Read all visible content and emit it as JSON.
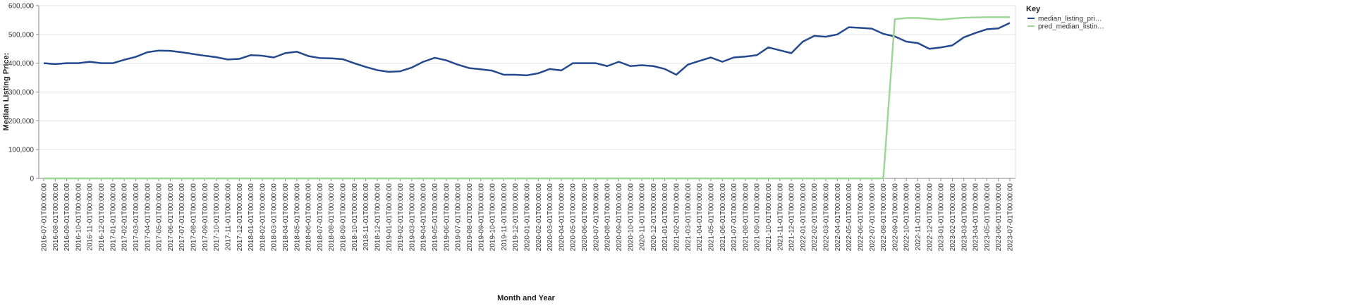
{
  "chart_data": {
    "type": "line",
    "x_label": "Month and Year",
    "y_label": "Median Listing Price:",
    "legend_title": "Key",
    "legend_position": "right",
    "grid": true,
    "categories": [
      "2016-07-01T00:00:00",
      "2016-08-01T00:00:00",
      "2016-09-01T00:00:00",
      "2016-10-01T00:00:00",
      "2016-11-01T00:00:00",
      "2016-12-01T00:00:00",
      "2017-01-01T00:00:00",
      "2017-02-01T00:00:00",
      "2017-03-01T00:00:00",
      "2017-04-01T00:00:00",
      "2017-05-01T00:00:00",
      "2017-06-01T00:00:00",
      "2017-07-01T00:00:00",
      "2017-08-01T00:00:00",
      "2017-09-01T00:00:00",
      "2017-10-01T00:00:00",
      "2017-11-01T00:00:00",
      "2017-12-01T00:00:00",
      "2018-01-01T00:00:00",
      "2018-02-01T00:00:00",
      "2018-03-01T00:00:00",
      "2018-04-01T00:00:00",
      "2018-05-01T00:00:00",
      "2018-06-01T00:00:00",
      "2018-07-01T00:00:00",
      "2018-08-01T00:00:00",
      "2018-09-01T00:00:00",
      "2018-10-01T00:00:00",
      "2018-11-01T00:00:00",
      "2018-12-01T00:00:00",
      "2019-01-01T00:00:00",
      "2019-02-01T00:00:00",
      "2019-03-01T00:00:00",
      "2019-04-01T00:00:00",
      "2019-05-01T00:00:00",
      "2019-06-01T00:00:00",
      "2019-07-01T00:00:00",
      "2019-08-01T00:00:00",
      "2019-09-01T00:00:00",
      "2019-10-01T00:00:00",
      "2019-11-01T00:00:00",
      "2019-12-01T00:00:00",
      "2020-01-01T00:00:00",
      "2020-02-01T00:00:00",
      "2020-03-01T00:00:00",
      "2020-04-01T00:00:00",
      "2020-05-01T00:00:00",
      "2020-06-01T00:00:00",
      "2020-07-01T00:00:00",
      "2020-08-01T00:00:00",
      "2020-09-01T00:00:00",
      "2020-10-01T00:00:00",
      "2020-11-01T00:00:00",
      "2020-12-01T00:00:00",
      "2021-01-01T00:00:00",
      "2021-02-01T00:00:00",
      "2021-03-01T00:00:00",
      "2021-04-01T00:00:00",
      "2021-05-01T00:00:00",
      "2021-06-01T00:00:00",
      "2021-07-01T00:00:00",
      "2021-08-01T00:00:00",
      "2021-09-01T00:00:00",
      "2021-10-01T00:00:00",
      "2021-11-01T00:00:00",
      "2021-12-01T00:00:00",
      "2022-01-01T00:00:00",
      "2022-02-01T00:00:00",
      "2022-03-01T00:00:00",
      "2022-04-01T00:00:00",
      "2022-05-01T00:00:00",
      "2022-06-01T00:00:00",
      "2022-07-01T00:00:00",
      "2022-08-01T00:00:00",
      "2022-09-01T00:00:00",
      "2022-10-01T00:00:00",
      "2022-11-01T00:00:00",
      "2022-12-01T00:00:00",
      "2023-01-01T00:00:00",
      "2023-02-01T00:00:00",
      "2023-03-01T00:00:00",
      "2023-04-01T00:00:00",
      "2023-05-01T00:00:00",
      "2023-06-01T00:00:00",
      "2023-07-01T00:00:00"
    ],
    "series": [
      {
        "name": "median_listing_pri…",
        "color": "#24498f",
        "values": [
          400000,
          397000,
          400000,
          400000,
          405000,
          400000,
          400000,
          412000,
          422000,
          438000,
          444000,
          443000,
          438000,
          432000,
          426000,
          421000,
          413000,
          415000,
          428000,
          426000,
          420000,
          435000,
          440000,
          425000,
          418000,
          417000,
          414000,
          400000,
          387000,
          376000,
          370000,
          372000,
          385000,
          405000,
          419000,
          410000,
          395000,
          383000,
          379000,
          374000,
          360000,
          360000,
          358000,
          365000,
          380000,
          375000,
          400000,
          400000,
          400000,
          390000,
          405000,
          390000,
          393000,
          390000,
          380000,
          360000,
          395000,
          408000,
          420000,
          405000,
          420000,
          423000,
          428000,
          455000,
          445000,
          435000,
          475000,
          495000,
          492000,
          500000,
          525000,
          523000,
          520000,
          502000,
          493000,
          475000,
          470000,
          450000,
          455000,
          462000,
          490000,
          505000,
          518000,
          521000,
          540000
        ]
      },
      {
        "name": "pred_median_listin…",
        "color": "#9ed698",
        "values": [
          0,
          0,
          0,
          0,
          0,
          0,
          0,
          0,
          0,
          0,
          0,
          0,
          0,
          0,
          0,
          0,
          0,
          0,
          0,
          0,
          0,
          0,
          0,
          0,
          0,
          0,
          0,
          0,
          0,
          0,
          0,
          0,
          0,
          0,
          0,
          0,
          0,
          0,
          0,
          0,
          0,
          0,
          0,
          0,
          0,
          0,
          0,
          0,
          0,
          0,
          0,
          0,
          0,
          0,
          0,
          0,
          0,
          0,
          0,
          0,
          0,
          0,
          0,
          0,
          0,
          0,
          0,
          0,
          0,
          0,
          0,
          0,
          0,
          0,
          553000,
          557000,
          557000,
          554000,
          551000,
          555000,
          558000,
          559000,
          560000,
          560000,
          560000
        ]
      }
    ],
    "ylim": [
      0,
      600000
    ],
    "yticks": [
      0,
      {
        "value": 100000,
        "label": "100,000"
      },
      {
        "value": 200000,
        "label": "200,000"
      },
      {
        "value": 300000,
        "label": "300,000"
      },
      {
        "value": 400000,
        "label": "400,000"
      },
      {
        "value": 500000,
        "label": "500,000"
      },
      {
        "value": 600000,
        "label": "600,000"
      }
    ]
  }
}
